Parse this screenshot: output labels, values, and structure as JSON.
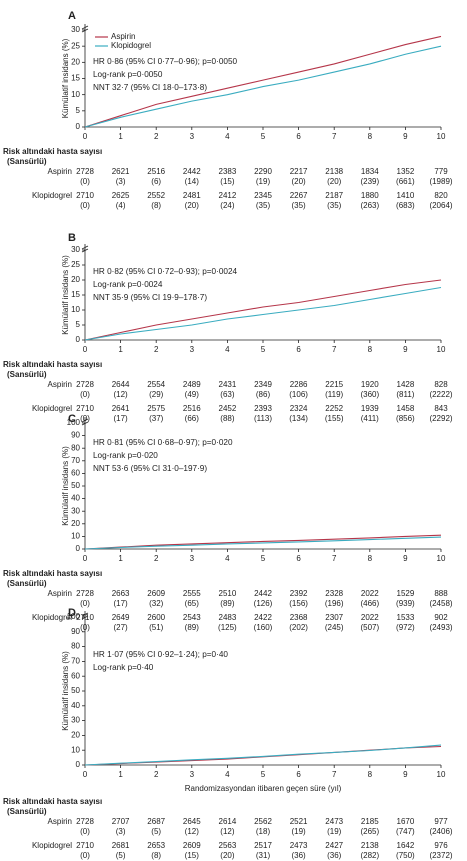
{
  "chart_data": [
    {
      "type": "line",
      "label": "A",
      "ylabel": "Kümülatif insidans (%)",
      "legend": true,
      "xlim": [
        0,
        10
      ],
      "xticks": [
        0,
        1,
        2,
        3,
        4,
        5,
        6,
        7,
        8,
        9,
        10
      ],
      "ylim": [
        0,
        30
      ],
      "yticks": [
        0,
        5,
        10,
        15,
        20,
        25,
        30
      ],
      "x": [
        0,
        1,
        2,
        3,
        4,
        5,
        6,
        7,
        8,
        9,
        10
      ],
      "series": [
        {
          "name": "Aspirin",
          "color": "#b5364a",
          "values": [
            0,
            3.5,
            7,
            9.5,
            12,
            14.5,
            17,
            19.5,
            22.5,
            25.5,
            28
          ]
        },
        {
          "name": "Klopidogrel",
          "color": "#3aacc0",
          "values": [
            0,
            3,
            5.5,
            8,
            10,
            12.5,
            14.5,
            17,
            19.5,
            22.5,
            25
          ]
        }
      ],
      "annotations": [
        "HR 0·86 (95% CI 0·77–0·96); p=0·0050",
        "Log-rank p=0·0050",
        "NNT 32·7 (95% CI 18·0–173·8)"
      ],
      "risk_table": {
        "title": "Risk altındaki hasta sayısı",
        "subtitle": "(Sansürlü)",
        "rows": [
          {
            "name": "Aspirin",
            "at_risk": [
              2728,
              2621,
              2516,
              2442,
              2383,
              2290,
              2217,
              2138,
              1834,
              1352,
              779
            ],
            "censored": [
              "(0)",
              "(3)",
              "(6)",
              "(14)",
              "(15)",
              "(19)",
              "(20)",
              "(20)",
              "(239)",
              "(661)",
              "(1989)"
            ]
          },
          {
            "name": "Klopidogrel",
            "at_risk": [
              2710,
              2625,
              2552,
              2481,
              2412,
              2345,
              2267,
              2187,
              1880,
              1410,
              820
            ],
            "censored": [
              "(0)",
              "(4)",
              "(8)",
              "(20)",
              "(24)",
              "(35)",
              "(35)",
              "(35)",
              "(263)",
              "(683)",
              "(2064)"
            ]
          }
        ]
      }
    },
    {
      "type": "line",
      "label": "B",
      "ylabel": "Kümülatif insidans (%)",
      "legend": false,
      "xlim": [
        0,
        10
      ],
      "xticks": [
        0,
        1,
        2,
        3,
        4,
        5,
        6,
        7,
        8,
        9,
        10
      ],
      "ylim": [
        0,
        30
      ],
      "yticks": [
        0,
        5,
        10,
        15,
        20,
        25,
        30
      ],
      "x": [
        0,
        1,
        2,
        3,
        4,
        5,
        6,
        7,
        8,
        9,
        10
      ],
      "series": [
        {
          "name": "Aspirin",
          "color": "#b5364a",
          "values": [
            0,
            2.5,
            5,
            7,
            9,
            11,
            12.5,
            14.5,
            16.5,
            18.5,
            20
          ]
        },
        {
          "name": "Klopidogrel",
          "color": "#3aacc0",
          "values": [
            0,
            2,
            3.5,
            5,
            7,
            8.5,
            10,
            11.5,
            13.5,
            15.5,
            17.5
          ]
        }
      ],
      "annotations": [
        "HR 0·82 (95% CI 0·72–0·93); p=0·0024",
        "Log-rank p=0·0024",
        "NNT 35·9 (95% CI 19·9–178·7)"
      ],
      "risk_table": {
        "title": "Risk altındaki hasta sayısı",
        "subtitle": "(Sansürlü)",
        "rows": [
          {
            "name": "Aspirin",
            "at_risk": [
              2728,
              2644,
              2554,
              2489,
              2431,
              2349,
              2286,
              2215,
              1920,
              1428,
              828
            ],
            "censored": [
              "(0)",
              "(12)",
              "(29)",
              "(49)",
              "(63)",
              "(86)",
              "(106)",
              "(119)",
              "(360)",
              "(811)",
              "(2222)"
            ]
          },
          {
            "name": "Klopidogrel",
            "at_risk": [
              2710,
              2641,
              2575,
              2516,
              2452,
              2393,
              2324,
              2252,
              1939,
              1458,
              843
            ],
            "censored": [
              "(0)",
              "(17)",
              "(37)",
              "(66)",
              "(88)",
              "(113)",
              "(134)",
              "(155)",
              "(411)",
              "(856)",
              "(2292)"
            ]
          }
        ]
      }
    },
    {
      "type": "line",
      "label": "C",
      "ylabel": "Kümülatif insidans (%)",
      "legend": false,
      "xlim": [
        0,
        10
      ],
      "xticks": [
        0,
        1,
        2,
        3,
        4,
        5,
        6,
        7,
        8,
        9,
        10
      ],
      "ylim": [
        0,
        100
      ],
      "yticks": [
        0,
        10,
        20,
        30,
        40,
        50,
        60,
        70,
        80,
        90,
        100
      ],
      "x": [
        0,
        1,
        2,
        3,
        4,
        5,
        6,
        7,
        8,
        9,
        10
      ],
      "series": [
        {
          "name": "Aspirin",
          "color": "#b5364a",
          "values": [
            0,
            1.5,
            3,
            4,
            5,
            6,
            6.8,
            7.8,
            8.8,
            10,
            11
          ]
        },
        {
          "name": "Klopidogrel",
          "color": "#3aacc0",
          "values": [
            0,
            1.2,
            2.2,
            3,
            4,
            4.8,
            5.6,
            6.5,
            7.5,
            8.5,
            9.5
          ]
        }
      ],
      "annotations": [
        "HR 0·81 (95% CI 0·68–0·97); p=0·020",
        "Log-rank p=0·020",
        "NNT 53·6 (95% CI 31·0–197·9)"
      ],
      "risk_table": {
        "title": "Risk altındaki hasta sayısı",
        "subtitle": "(Sansürlü)",
        "rows": [
          {
            "name": "Aspirin",
            "at_risk": [
              2728,
              2663,
              2609,
              2555,
              2510,
              2442,
              2392,
              2328,
              2022,
              1529,
              888
            ],
            "censored": [
              "(0)",
              "(17)",
              "(32)",
              "(65)",
              "(89)",
              "(126)",
              "(156)",
              "(196)",
              "(466)",
              "(939)",
              "(2458)"
            ]
          },
          {
            "name": "Klopidogrel",
            "at_risk": [
              2710,
              2649,
              2600,
              2543,
              2483,
              2422,
              2368,
              2307,
              2022,
              1533,
              902
            ],
            "censored": [
              "(0)",
              "(27)",
              "(51)",
              "(89)",
              "(125)",
              "(160)",
              "(202)",
              "(245)",
              "(507)",
              "(972)",
              "(2493)"
            ]
          }
        ]
      }
    },
    {
      "type": "line",
      "label": "D",
      "ylabel": "Kümülatif insidans (%)",
      "xlabel": "Randomizasyondan itibaren geçen süre (yıl)",
      "legend": false,
      "xlim": [
        0,
        10
      ],
      "xticks": [
        0,
        1,
        2,
        3,
        4,
        5,
        6,
        7,
        8,
        9,
        10
      ],
      "ylim": [
        0,
        100
      ],
      "yticks": [
        0,
        10,
        20,
        30,
        40,
        50,
        60,
        70,
        80,
        90,
        100
      ],
      "x": [
        0,
        1,
        2,
        3,
        4,
        5,
        6,
        7,
        8,
        9,
        10
      ],
      "series": [
        {
          "name": "Aspirin",
          "color": "#b5364a",
          "values": [
            0,
            1,
            2,
            3,
            4,
            5.5,
            7,
            8.5,
            10,
            11.5,
            12.5
          ]
        },
        {
          "name": "Klopidogrel",
          "color": "#3aacc0",
          "values": [
            0,
            1.2,
            2.3,
            3.5,
            4.5,
            5.8,
            7.3,
            8.5,
            9.8,
            11.5,
            13.5
          ]
        }
      ],
      "annotations": [
        "HR 1·07 (95% CI 0·92–1·24); p=0·40",
        "Log-rank p=0·40"
      ],
      "risk_table": {
        "title": "Risk altındaki hasta sayısı",
        "subtitle": "(Sansürlü)",
        "rows": [
          {
            "name": "Aspirin",
            "at_risk": [
              2728,
              2707,
              2687,
              2645,
              2614,
              2562,
              2521,
              2473,
              2185,
              1670,
              977
            ],
            "censored": [
              "(0)",
              "(3)",
              "(5)",
              "(12)",
              "(12)",
              "(18)",
              "(19)",
              "(19)",
              "(265)",
              "(747)",
              "(2406)"
            ]
          },
          {
            "name": "Klopidogrel",
            "at_risk": [
              2710,
              2681,
              2653,
              2609,
              2563,
              2517,
              2473,
              2427,
              2138,
              1642,
              976
            ],
            "censored": [
              "(0)",
              "(5)",
              "(8)",
              "(15)",
              "(20)",
              "(31)",
              "(36)",
              "(36)",
              "(282)",
              "(750)",
              "(2372)"
            ]
          }
        ]
      }
    }
  ]
}
